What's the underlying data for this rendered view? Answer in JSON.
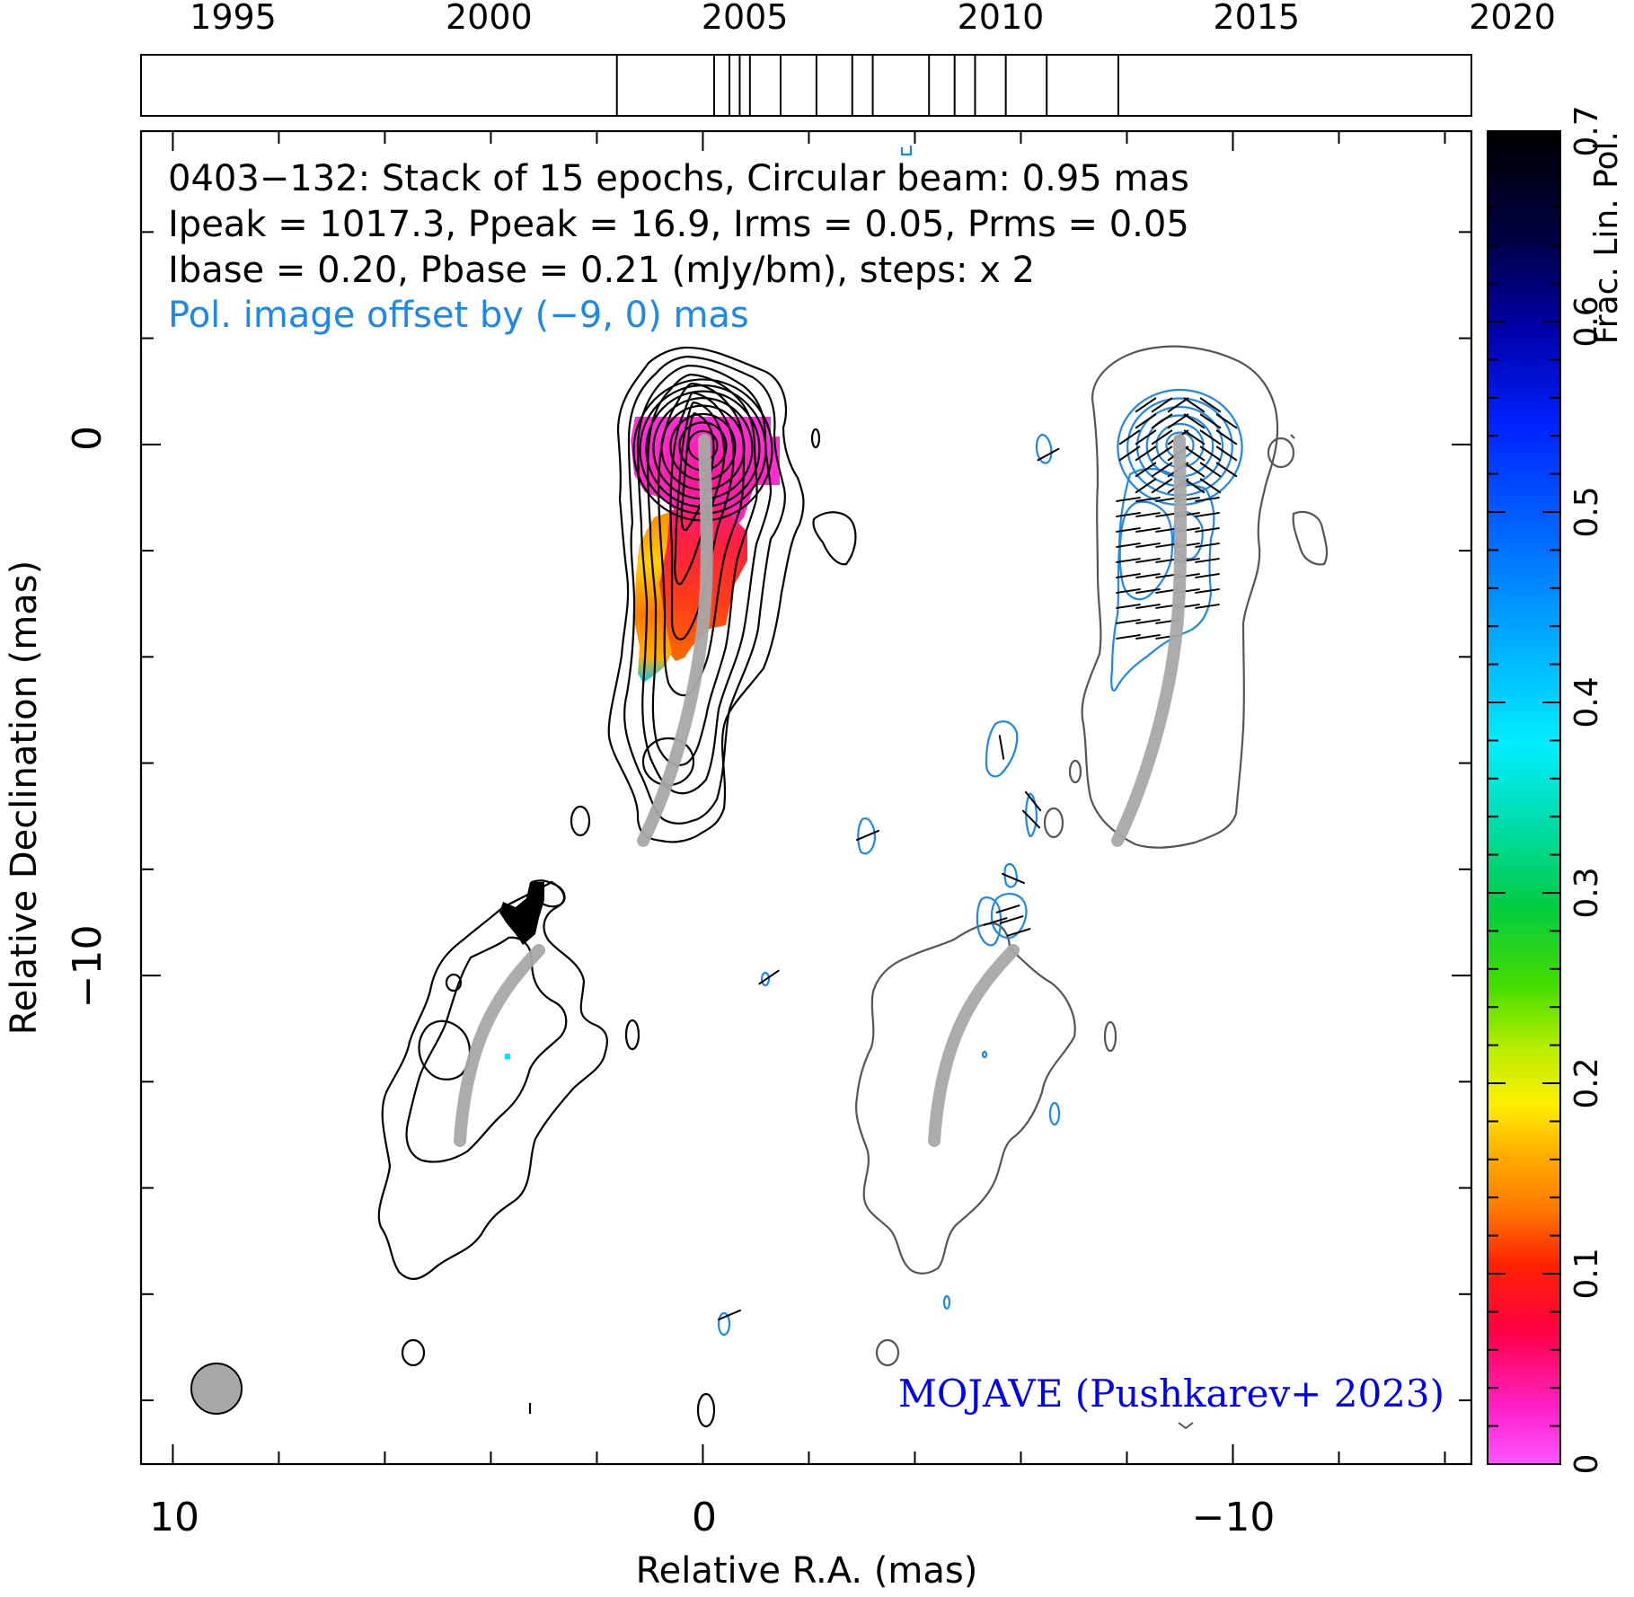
{
  "chart_data": {
    "type": "contour",
    "source": "0403-132",
    "annotations": {
      "line1": "0403−132: Stack of 15 epochs, Circular beam: 0.95 mas",
      "line2": "Ipeak = 1017.3, Ppeak = 16.9, Irms = 0.05, Prms = 0.05",
      "line3": "Ibase = 0.20, Pbase = 0.21 (mJy/bm), steps: x 2",
      "line4": "Pol. image offset by (−9, 0) mas",
      "credit": "MOJAVE (Pushkarev+ 2023)"
    },
    "xlabel": "Relative R.A. (mas)",
    "ylabel": "Relative Declination (mas)",
    "xlim": [
      10.6,
      -14.5
    ],
    "ylim": [
      -19.2,
      5.9
    ],
    "x_ticks": [
      10,
      0,
      -10
    ],
    "x_tick_labels": [
      "10",
      "0",
      "−10"
    ],
    "y_ticks": [
      0,
      -10
    ],
    "y_tick_labels": [
      "0",
      "−10"
    ],
    "timeline": {
      "xlim": [
        1993.2,
        2019.2
      ],
      "tick_labels": [
        "1995",
        "2000",
        "2005",
        "2010",
        "2015",
        "2020"
      ],
      "tick_years": [
        1995,
        2000,
        2005,
        2010,
        2015,
        2020
      ],
      "epochs": [
        2002.5,
        2004.4,
        2004.7,
        2004.9,
        2005.1,
        2005.7,
        2006.4,
        2007.1,
        2007.5,
        2008.6,
        2009.1,
        2009.5,
        2010.1,
        2010.9,
        2012.3
      ]
    },
    "colorbar": {
      "label": "Frac. Lin. Pol.",
      "range": [
        0,
        0.7
      ],
      "tick_values": [
        0,
        0.1,
        0.2,
        0.3,
        0.4,
        0.5,
        0.6,
        0.7
      ],
      "tick_labels": [
        "0",
        "0.1",
        "0.2",
        "0.3",
        "0.4",
        "0.5",
        "0.6",
        "0.7"
      ]
    },
    "beam_mas": 0.95,
    "core": [
      0,
      0
    ],
    "ridge_line": [
      [
        0,
        0
      ],
      [
        -0.1,
        -2.5
      ],
      [
        0.2,
        -5.5
      ],
      [
        0.8,
        -7.0
      ],
      [
        1.2,
        -7.6
      ]
    ],
    "outer_ridge": [
      [
        3.2,
        -9.8
      ],
      [
        4.0,
        -10.8
      ],
      [
        4.5,
        -12.0
      ],
      [
        4.6,
        -13.2
      ]
    ],
    "pol_offset_mas": [
      -9,
      0
    ],
    "colors": {
      "total_intensity": "#000000",
      "polarized_contour": "#1e88e5",
      "ridge": "#a8a8a8",
      "credit": "#0000ee",
      "annotation_blue": "#1e88e5"
    }
  }
}
